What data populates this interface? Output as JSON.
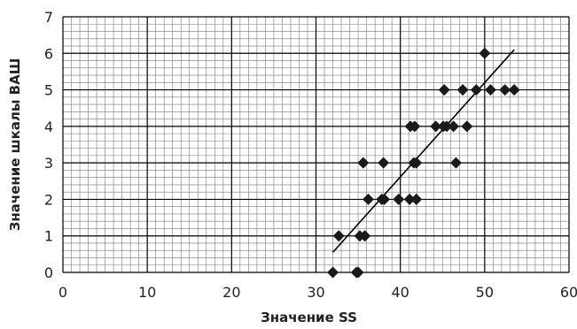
{
  "chart_data": {
    "type": "scatter",
    "title": "",
    "xlabel": "Значение SS",
    "ylabel": "Значение шкалы ВАШ",
    "xlim": [
      0,
      60
    ],
    "ylim": [
      0,
      7
    ],
    "xticks": [
      0,
      10,
      20,
      30,
      40,
      50,
      60
    ],
    "yticks": [
      0,
      1,
      2,
      3,
      4,
      5,
      6,
      7
    ],
    "x_tick_labels": [
      "0",
      "10",
      "20",
      "30",
      "40",
      "50",
      "60"
    ],
    "y_tick_labels": [
      "0",
      "1",
      "2",
      "3",
      "4",
      "5",
      "6",
      "7"
    ],
    "grid": true,
    "minor_grid": true,
    "legend": "none",
    "marker": "diamond",
    "marker_color": "#1a1a1a",
    "grid_color": "#000000",
    "series": [
      {
        "points": [
          [
            32,
            0
          ],
          [
            34.8,
            0
          ],
          [
            35,
            0
          ],
          [
            32.7,
            1
          ],
          [
            35.2,
            1
          ],
          [
            35.8,
            1
          ],
          [
            35.6,
            3
          ],
          [
            36.2,
            2
          ],
          [
            37.8,
            2
          ],
          [
            38.1,
            2
          ],
          [
            38,
            3
          ],
          [
            39.8,
            2
          ],
          [
            41.1,
            2
          ],
          [
            41.9,
            2
          ],
          [
            41.2,
            4
          ],
          [
            41.7,
            4
          ],
          [
            41.6,
            3
          ],
          [
            41.9,
            3
          ],
          [
            44.2,
            4
          ],
          [
            45.1,
            4
          ],
          [
            45.2,
            5
          ],
          [
            45.5,
            4
          ],
          [
            46.3,
            4
          ],
          [
            46.6,
            3
          ],
          [
            47.4,
            5
          ],
          [
            47.9,
            4
          ],
          [
            49,
            5
          ],
          [
            50,
            6
          ],
          [
            50.7,
            5
          ],
          [
            52.4,
            5
          ],
          [
            53.5,
            5
          ]
        ]
      }
    ],
    "trendline": {
      "x": [
        32,
        53.5
      ],
      "y": [
        0.55,
        6.1
      ]
    }
  }
}
